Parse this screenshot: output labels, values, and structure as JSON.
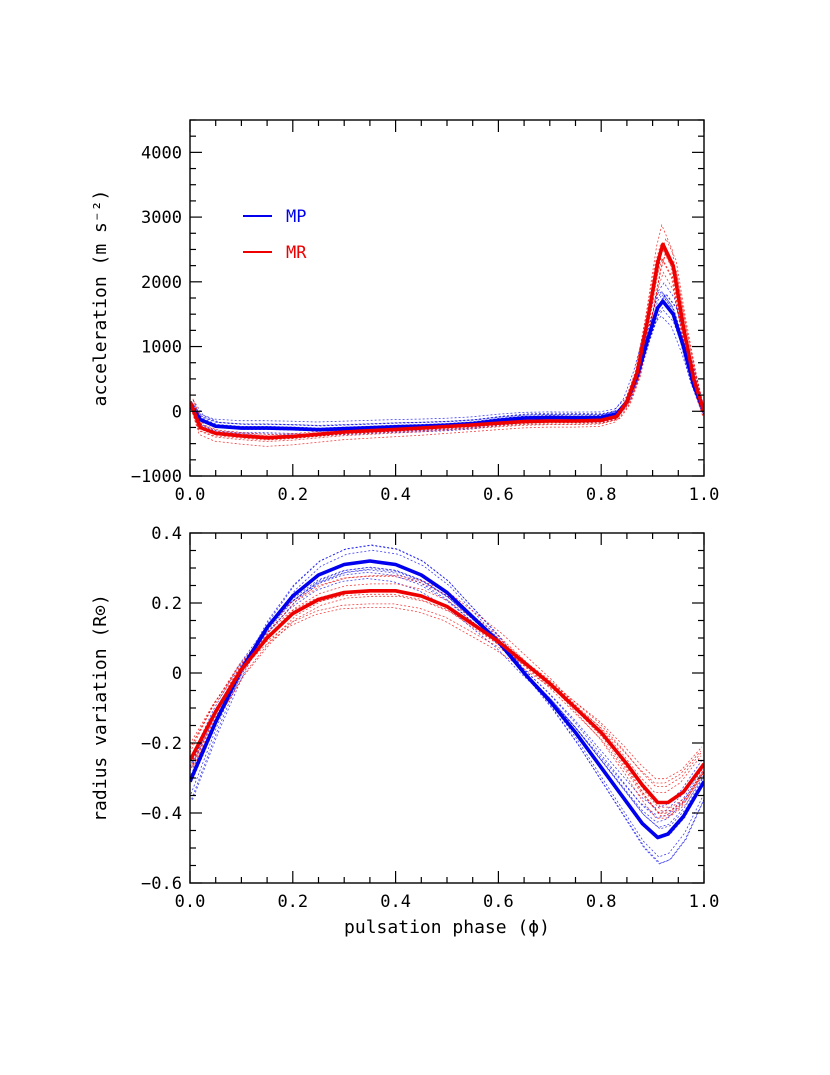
{
  "chart_data": [
    {
      "type": "line",
      "xlabel": "",
      "ylabel": "acceleration (m s⁻²)",
      "xlim": [
        0.0,
        1.0
      ],
      "ylim": [
        -1000,
        4500
      ],
      "xticks": [
        0.0,
        0.2,
        0.4,
        0.6,
        0.8,
        1.0
      ],
      "xtick_labels": [
        "0.0",
        "0.2",
        "0.4",
        "0.6",
        "0.8",
        "1.0"
      ],
      "yticks": [
        -1000,
        0,
        1000,
        2000,
        3000,
        4000
      ],
      "ytick_labels": [
        "−1000",
        "0",
        "1000",
        "2000",
        "3000",
        "4000"
      ],
      "legend": {
        "placement": "upper-left",
        "entries": [
          {
            "name": "MP",
            "color": "#0000ee"
          },
          {
            "name": "MR",
            "color": "#ee0000"
          }
        ]
      },
      "x": [
        0.0,
        0.02,
        0.05,
        0.1,
        0.15,
        0.2,
        0.25,
        0.3,
        0.35,
        0.4,
        0.45,
        0.5,
        0.55,
        0.6,
        0.65,
        0.7,
        0.75,
        0.8,
        0.83,
        0.85,
        0.87,
        0.89,
        0.91,
        0.92,
        0.94,
        0.96,
        0.98,
        1.0
      ],
      "series": [
        {
          "name": "MP",
          "color": "#0000ee",
          "line": "solid-thick",
          "values": [
            100,
            -130,
            -230,
            -260,
            -260,
            -270,
            -285,
            -270,
            -255,
            -240,
            -230,
            -215,
            -190,
            -140,
            -105,
            -95,
            -100,
            -95,
            -40,
            150,
            550,
            1100,
            1600,
            1700,
            1500,
            1000,
            400,
            0
          ]
        },
        {
          "name": "MR",
          "color": "#ee0000",
          "line": "solid-thick",
          "values": [
            150,
            -250,
            -340,
            -380,
            -410,
            -390,
            -355,
            -320,
            -300,
            -280,
            -260,
            -235,
            -210,
            -185,
            -160,
            -150,
            -150,
            -140,
            -80,
            150,
            600,
            1400,
            2300,
            2580,
            2250,
            1300,
            500,
            0
          ]
        }
      ],
      "grid": false
    },
    {
      "type": "line",
      "xlabel": "pulsation phase (ϕ)",
      "ylabel": "radius variation (R⊙)",
      "xlim": [
        0.0,
        1.0
      ],
      "ylim": [
        -0.6,
        0.4
      ],
      "xticks": [
        0.0,
        0.2,
        0.4,
        0.6,
        0.8,
        1.0
      ],
      "xtick_labels": [
        "0.0",
        "0.2",
        "0.4",
        "0.6",
        "0.8",
        "1.0"
      ],
      "yticks": [
        -0.6,
        -0.4,
        -0.2,
        0.0,
        0.2,
        0.4
      ],
      "ytick_labels": [
        "−0.6",
        "−0.4",
        "−0.2",
        "0",
        "0.2",
        "0.4"
      ],
      "x": [
        0.0,
        0.05,
        0.1,
        0.15,
        0.2,
        0.25,
        0.3,
        0.35,
        0.4,
        0.45,
        0.5,
        0.55,
        0.6,
        0.65,
        0.7,
        0.75,
        0.8,
        0.85,
        0.88,
        0.91,
        0.93,
        0.96,
        1.0
      ],
      "series": [
        {
          "name": "MP",
          "color": "#0000ee",
          "line": "solid-thick",
          "values": [
            -0.31,
            -0.14,
            0.01,
            0.13,
            0.22,
            0.28,
            0.31,
            0.32,
            0.31,
            0.28,
            0.23,
            0.16,
            0.09,
            0.0,
            -0.08,
            -0.17,
            -0.27,
            -0.37,
            -0.43,
            -0.47,
            -0.46,
            -0.41,
            -0.31
          ]
        },
        {
          "name": "MR",
          "color": "#ee0000",
          "line": "solid-thick",
          "values": [
            -0.25,
            -0.11,
            0.01,
            0.1,
            0.17,
            0.21,
            0.23,
            0.235,
            0.235,
            0.22,
            0.19,
            0.14,
            0.09,
            0.03,
            -0.03,
            -0.1,
            -0.17,
            -0.26,
            -0.32,
            -0.37,
            -0.37,
            -0.34,
            -0.26
          ]
        }
      ],
      "grid": false
    }
  ]
}
